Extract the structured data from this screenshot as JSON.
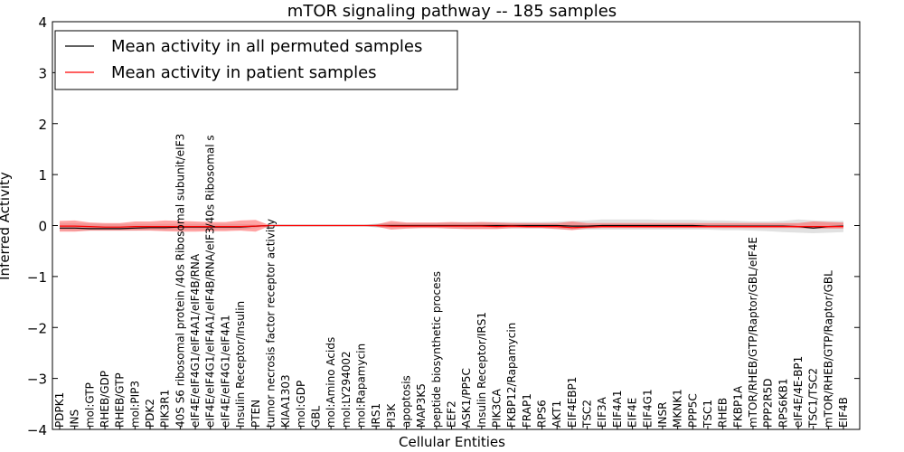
{
  "chart_data": {
    "type": "line",
    "title": "mTOR signaling pathway -- 185 samples",
    "xlabel": "Cellular Entities",
    "ylabel": "Inferred Activity",
    "ylim": [
      -4,
      4
    ],
    "yticks": [
      -4,
      -3,
      -2,
      -1,
      0,
      1,
      2,
      3,
      4
    ],
    "ytick_labels": [
      "−4",
      "−3",
      "−2",
      "−1",
      "0",
      "1",
      "2",
      "3",
      "4"
    ],
    "legend_position": "top-left",
    "categories": [
      "PDPK1",
      "INS",
      "mol:GTP",
      "RHEB/GDP",
      "RHEB/GTP",
      "mol:PIP3",
      "PDK2",
      "PIK3R1",
      "40S S6 ribosomal protein /40s Ribosomal subunit/eIF3",
      "eIF4E/eIF4G1/eIF4A1/eIF4B/RNA",
      "eIF4E/eIF4G1/eIF4A1/eIF4B/RNA/eIF3/40s Ribosomal s",
      "eIF4E/eIF4G1/eIF4A1",
      "Insulin Receptor/Insulin",
      "PTEN",
      "tumor necrosis factor receptor activity",
      "KIAA1303",
      "mol:GDP",
      "GBL",
      "mol:Amino Acids",
      "mol:LY294002",
      "mol:Rapamycin",
      "IRS1",
      "PI3K",
      "apoptosis",
      "MAP3K5",
      "peptide biosynthetic process",
      "EEF2",
      "ASK1/PP5C",
      "Insulin Receptor/IRS1",
      "PIK3CA",
      "FKBP12/Rapamycin",
      "FRAP1",
      "RPS6",
      "AKT1",
      "EIF4EBP1",
      "TSC2",
      "EIF3A",
      "EIF4A1",
      "EIF4E",
      "EIF4G1",
      "INSR",
      "MKNK1",
      "PPP5C",
      "TSC1",
      "RHEB",
      "FKBP1A",
      "mTOR/RHEB/GTP/Raptor/GBL/eIF4E",
      "PPP2R5D",
      "RPS6KB1",
      "eIF4E/4E-BP1",
      "TSC1/TSC2",
      "mTOR/RHEB/GTP/Raptor/GBL",
      "EIF4B"
    ],
    "series": [
      {
        "name": "Mean activity in all permuted samples",
        "color": "#000000",
        "values": [
          -0.05,
          -0.05,
          -0.06,
          -0.06,
          -0.06,
          -0.05,
          -0.04,
          -0.04,
          -0.03,
          -0.03,
          -0.03,
          -0.03,
          -0.03,
          -0.01,
          0.0,
          0.0,
          0.0,
          0.0,
          0.0,
          0.0,
          0.0,
          0.0,
          0.0,
          0.0,
          0.0,
          0.0,
          0.0,
          0.0,
          0.0,
          0.0,
          0.0,
          0.0,
          0.0,
          0.0,
          -0.01,
          -0.01,
          0.0,
          0.0,
          0.0,
          0.0,
          0.0,
          0.0,
          0.0,
          -0.01,
          -0.01,
          -0.01,
          -0.01,
          -0.01,
          -0.01,
          -0.02,
          -0.05,
          -0.02,
          -0.01
        ],
        "band_lower": [
          -0.09,
          -0.1,
          -0.1,
          -0.1,
          -0.1,
          -0.1,
          -0.09,
          -0.09,
          -0.08,
          -0.08,
          -0.08,
          -0.08,
          -0.08,
          -0.05,
          0.0,
          0.0,
          0.0,
          0.0,
          0.0,
          0.0,
          0.0,
          -0.04,
          -0.05,
          -0.05,
          -0.05,
          -0.05,
          -0.06,
          -0.06,
          -0.06,
          -0.06,
          -0.06,
          -0.06,
          -0.06,
          -0.07,
          -0.08,
          -0.08,
          -0.08,
          -0.08,
          -0.08,
          -0.08,
          -0.08,
          -0.08,
          -0.08,
          -0.08,
          -0.09,
          -0.09,
          -0.1,
          -0.11,
          -0.13,
          -0.14,
          -0.15,
          -0.14,
          -0.13
        ],
        "band_upper": [
          0.05,
          0.05,
          0.04,
          0.03,
          0.03,
          0.03,
          0.03,
          0.03,
          0.03,
          0.03,
          0.03,
          0.03,
          0.03,
          0.02,
          0.0,
          0.0,
          0.0,
          0.0,
          0.0,
          0.0,
          0.0,
          0.04,
          0.05,
          0.05,
          0.05,
          0.05,
          0.06,
          0.07,
          0.07,
          0.07,
          0.07,
          0.07,
          0.07,
          0.08,
          0.09,
          0.1,
          0.12,
          0.12,
          0.12,
          0.12,
          0.11,
          0.11,
          0.11,
          0.1,
          0.1,
          0.09,
          0.08,
          0.08,
          0.09,
          0.12,
          0.1,
          0.09,
          0.09
        ]
      },
      {
        "name": "Mean activity in patient samples",
        "color": "#ff0000",
        "values": [
          -0.01,
          -0.01,
          -0.02,
          -0.03,
          -0.03,
          -0.02,
          -0.02,
          -0.02,
          -0.02,
          -0.02,
          -0.02,
          -0.02,
          -0.02,
          -0.01,
          0.0,
          0.0,
          0.0,
          0.0,
          0.0,
          0.0,
          0.0,
          0.0,
          -0.01,
          -0.01,
          -0.01,
          -0.01,
          -0.01,
          -0.01,
          -0.01,
          -0.02,
          -0.01,
          -0.02,
          -0.02,
          -0.02,
          -0.04,
          -0.03,
          -0.02,
          -0.02,
          -0.02,
          -0.02,
          -0.02,
          -0.02,
          -0.02,
          -0.02,
          -0.02,
          -0.02,
          -0.02,
          -0.02,
          -0.02,
          -0.02,
          -0.02,
          -0.02,
          -0.02
        ],
        "band_lower": [
          -0.12,
          -0.12,
          -0.1,
          -0.1,
          -0.1,
          -0.1,
          -0.1,
          -0.11,
          -0.12,
          -0.12,
          -0.11,
          -0.11,
          -0.1,
          -0.12,
          0.0,
          0.0,
          0.0,
          0.0,
          0.0,
          0.0,
          0.0,
          -0.02,
          -0.08,
          -0.06,
          -0.05,
          -0.05,
          -0.06,
          -0.07,
          -0.07,
          -0.07,
          -0.05,
          -0.05,
          -0.05,
          -0.07,
          -0.09,
          -0.06,
          -0.05,
          -0.05,
          -0.05,
          -0.05,
          -0.05,
          -0.05,
          -0.05,
          -0.05,
          -0.05,
          -0.05,
          -0.05,
          -0.05,
          -0.05,
          -0.05,
          -0.06,
          -0.06,
          -0.06
        ],
        "band_upper": [
          0.09,
          0.1,
          0.06,
          0.05,
          0.05,
          0.08,
          0.08,
          0.1,
          0.09,
          0.08,
          0.07,
          0.07,
          0.1,
          0.11,
          0.0,
          0.0,
          0.0,
          0.0,
          0.0,
          0.0,
          0.0,
          0.02,
          0.09,
          0.06,
          0.06,
          0.06,
          0.07,
          0.06,
          0.07,
          0.06,
          0.05,
          0.05,
          0.05,
          0.05,
          0.08,
          0.05,
          0.05,
          0.05,
          0.05,
          0.05,
          0.05,
          0.05,
          0.05,
          0.05,
          0.05,
          0.05,
          0.05,
          0.05,
          0.05,
          0.05,
          0.08,
          0.07,
          0.06
        ]
      }
    ]
  }
}
